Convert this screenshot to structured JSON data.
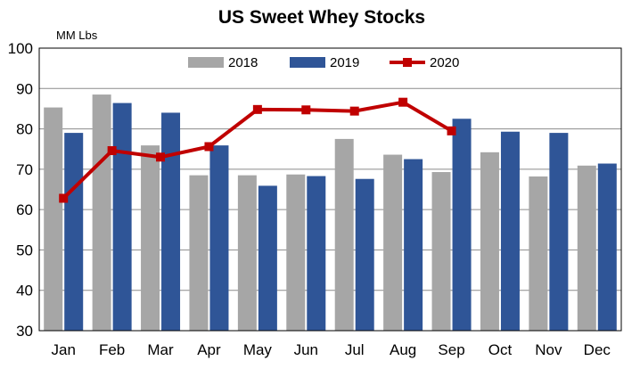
{
  "chart_data": {
    "type": "bar",
    "title": "US Sweet Whey Stocks",
    "ylabel": "MM Lbs",
    "xlabel": "",
    "ylim": [
      30,
      100
    ],
    "yticks": [
      30,
      40,
      50,
      60,
      70,
      80,
      90,
      100
    ],
    "grid": true,
    "legend_position": "top-center",
    "categories": [
      "Jan",
      "Feb",
      "Mar",
      "Apr",
      "May",
      "Jun",
      "Jul",
      "Aug",
      "Sep",
      "Oct",
      "Nov",
      "Dec"
    ],
    "series": [
      {
        "name": "2018",
        "type": "bar",
        "color": "#a6a6a6",
        "values": [
          85.3,
          88.5,
          75.9,
          68.5,
          68.5,
          68.7,
          77.5,
          73.6,
          69.3,
          74.2,
          68.2,
          70.9
        ]
      },
      {
        "name": "2019",
        "type": "bar",
        "color": "#2f5597",
        "values": [
          79.0,
          86.4,
          84.0,
          75.9,
          65.9,
          68.3,
          67.6,
          72.5,
          82.5,
          79.3,
          79.0,
          71.4
        ]
      },
      {
        "name": "2020",
        "type": "line",
        "color": "#c00000",
        "values": [
          62.8,
          74.6,
          73.0,
          75.6,
          84.8,
          84.7,
          84.4,
          86.6,
          79.5,
          null,
          null,
          null
        ]
      }
    ]
  }
}
